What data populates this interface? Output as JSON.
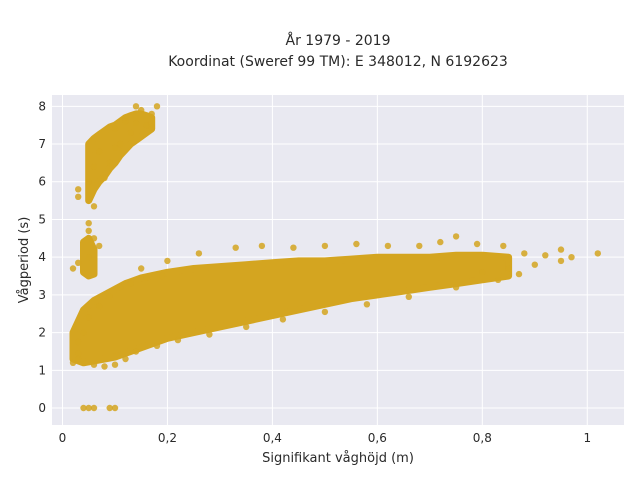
{
  "chart_data": {
    "type": "scatter",
    "title": "År 1979 - 2019",
    "subtitle": "Koordinat (Sweref 99 TM): E 348012, N 6192623",
    "xlabel": "Signifikant våghöjd (m)",
    "ylabel": "Vågperiod (s)",
    "xlim": [
      -0.02,
      1.07
    ],
    "ylim": [
      -0.45,
      8.3
    ],
    "xticks": [
      0,
      0.2,
      0.4,
      0.6,
      0.8,
      1
    ],
    "xtick_labels": [
      "0",
      "0,2",
      "0,4",
      "0,6",
      "0,8",
      "1"
    ],
    "yticks": [
      0,
      1,
      2,
      3,
      4,
      5,
      6,
      7,
      8
    ],
    "ytick_labels": [
      "0",
      "1",
      "2",
      "3",
      "4",
      "5",
      "6",
      "7",
      "8"
    ],
    "grid": true,
    "marker_color": "#D4A520",
    "background_color": "#E9E9F1",
    "points": [
      [
        0.04,
        0.0
      ],
      [
        0.05,
        0.0
      ],
      [
        0.06,
        0.0
      ],
      [
        0.09,
        0.0
      ],
      [
        0.1,
        0.0
      ],
      [
        0.06,
        5.35
      ],
      [
        0.05,
        4.9
      ],
      [
        0.05,
        4.7
      ],
      [
        0.06,
        4.5
      ],
      [
        0.07,
        4.3
      ],
      [
        0.03,
        3.85
      ],
      [
        0.02,
        3.7
      ],
      [
        0.05,
        4.0
      ],
      [
        0.03,
        5.6
      ],
      [
        0.03,
        5.8
      ],
      [
        0.05,
        6.0
      ],
      [
        0.06,
        6.4
      ],
      [
        0.07,
        6.8
      ],
      [
        0.1,
        7.4
      ],
      [
        0.12,
        7.7
      ],
      [
        0.14,
        8.0
      ],
      [
        0.15,
        7.9
      ],
      [
        0.18,
        8.0
      ],
      [
        0.17,
        7.8
      ],
      [
        0.16,
        7.5
      ],
      [
        0.17,
        7.45
      ],
      [
        0.13,
        7.3
      ],
      [
        0.11,
        7.0
      ],
      [
        0.09,
        6.5
      ],
      [
        0.08,
        6.1
      ],
      [
        0.1,
        6.9
      ],
      [
        0.12,
        7.6
      ],
      [
        0.14,
        7.55
      ],
      [
        0.02,
        1.2
      ],
      [
        0.03,
        1.3
      ],
      [
        0.06,
        1.15
      ],
      [
        0.08,
        1.1
      ],
      [
        0.1,
        1.15
      ],
      [
        0.12,
        1.3
      ],
      [
        0.14,
        1.5
      ],
      [
        0.18,
        1.65
      ],
      [
        0.22,
        1.8
      ],
      [
        0.28,
        1.95
      ],
      [
        0.35,
        2.15
      ],
      [
        0.42,
        2.35
      ],
      [
        0.5,
        2.55
      ],
      [
        0.58,
        2.75
      ],
      [
        0.66,
        2.95
      ],
      [
        0.75,
        3.2
      ],
      [
        0.83,
        3.4
      ],
      [
        0.15,
        3.7
      ],
      [
        0.2,
        3.9
      ],
      [
        0.26,
        4.1
      ],
      [
        0.33,
        4.25
      ],
      [
        0.38,
        4.3
      ],
      [
        0.44,
        4.25
      ],
      [
        0.5,
        4.3
      ],
      [
        0.56,
        4.35
      ],
      [
        0.62,
        4.3
      ],
      [
        0.68,
        4.3
      ],
      [
        0.72,
        4.4
      ],
      [
        0.75,
        4.55
      ],
      [
        0.79,
        4.35
      ],
      [
        0.84,
        4.3
      ],
      [
        0.88,
        4.1
      ],
      [
        0.92,
        4.05
      ],
      [
        0.95,
        4.2
      ],
      [
        0.97,
        4.0
      ],
      [
        1.02,
        4.1
      ],
      [
        0.87,
        3.55
      ],
      [
        0.95,
        3.9
      ],
      [
        0.9,
        3.8
      ],
      [
        0.85,
        3.7
      ],
      [
        0.8,
        3.6
      ],
      [
        0.03,
        1.45
      ],
      [
        0.03,
        1.75
      ],
      [
        0.04,
        2.0
      ],
      [
        0.05,
        2.4
      ],
      [
        0.07,
        2.7
      ],
      [
        0.09,
        2.95
      ],
      [
        0.11,
        3.2
      ],
      [
        0.13,
        3.3
      ],
      [
        0.16,
        3.45
      ],
      [
        0.19,
        3.5
      ]
    ],
    "series": [
      {
        "kind": "upper-band",
        "x": [
          0.05,
          0.06,
          0.07,
          0.08,
          0.09,
          0.1,
          0.11,
          0.12,
          0.13,
          0.14,
          0.15,
          0.16,
          0.17
        ],
        "y_min": [
          5.5,
          5.8,
          6.0,
          6.15,
          6.35,
          6.5,
          6.7,
          6.85,
          7.0,
          7.1,
          7.2,
          7.3,
          7.4
        ],
        "y_max": [
          7.0,
          7.15,
          7.25,
          7.35,
          7.45,
          7.5,
          7.6,
          7.7,
          7.75,
          7.8,
          7.8,
          7.75,
          7.7
        ]
      },
      {
        "kind": "lower-band",
        "x": [
          0.02,
          0.04,
          0.06,
          0.08,
          0.1,
          0.12,
          0.15,
          0.2,
          0.25,
          0.3,
          0.35,
          0.4,
          0.45,
          0.5,
          0.55,
          0.6,
          0.65,
          0.7,
          0.75,
          0.8,
          0.85
        ],
        "y_min": [
          1.3,
          1.2,
          1.25,
          1.3,
          1.35,
          1.45,
          1.6,
          1.85,
          2.0,
          2.15,
          2.3,
          2.45,
          2.6,
          2.75,
          2.9,
          3.0,
          3.1,
          3.2,
          3.3,
          3.4,
          3.5
        ],
        "y_max": [
          2.0,
          2.6,
          2.85,
          3.0,
          3.15,
          3.3,
          3.45,
          3.6,
          3.7,
          3.75,
          3.8,
          3.85,
          3.9,
          3.9,
          3.95,
          4.0,
          4.0,
          4.0,
          4.05,
          4.05,
          4.0
        ]
      },
      {
        "kind": "mid-cluster",
        "x": [
          0.04,
          0.05,
          0.06
        ],
        "y_min": [
          3.6,
          3.5,
          3.55
        ],
        "y_max": [
          4.4,
          4.5,
          4.2
        ]
      }
    ]
  }
}
